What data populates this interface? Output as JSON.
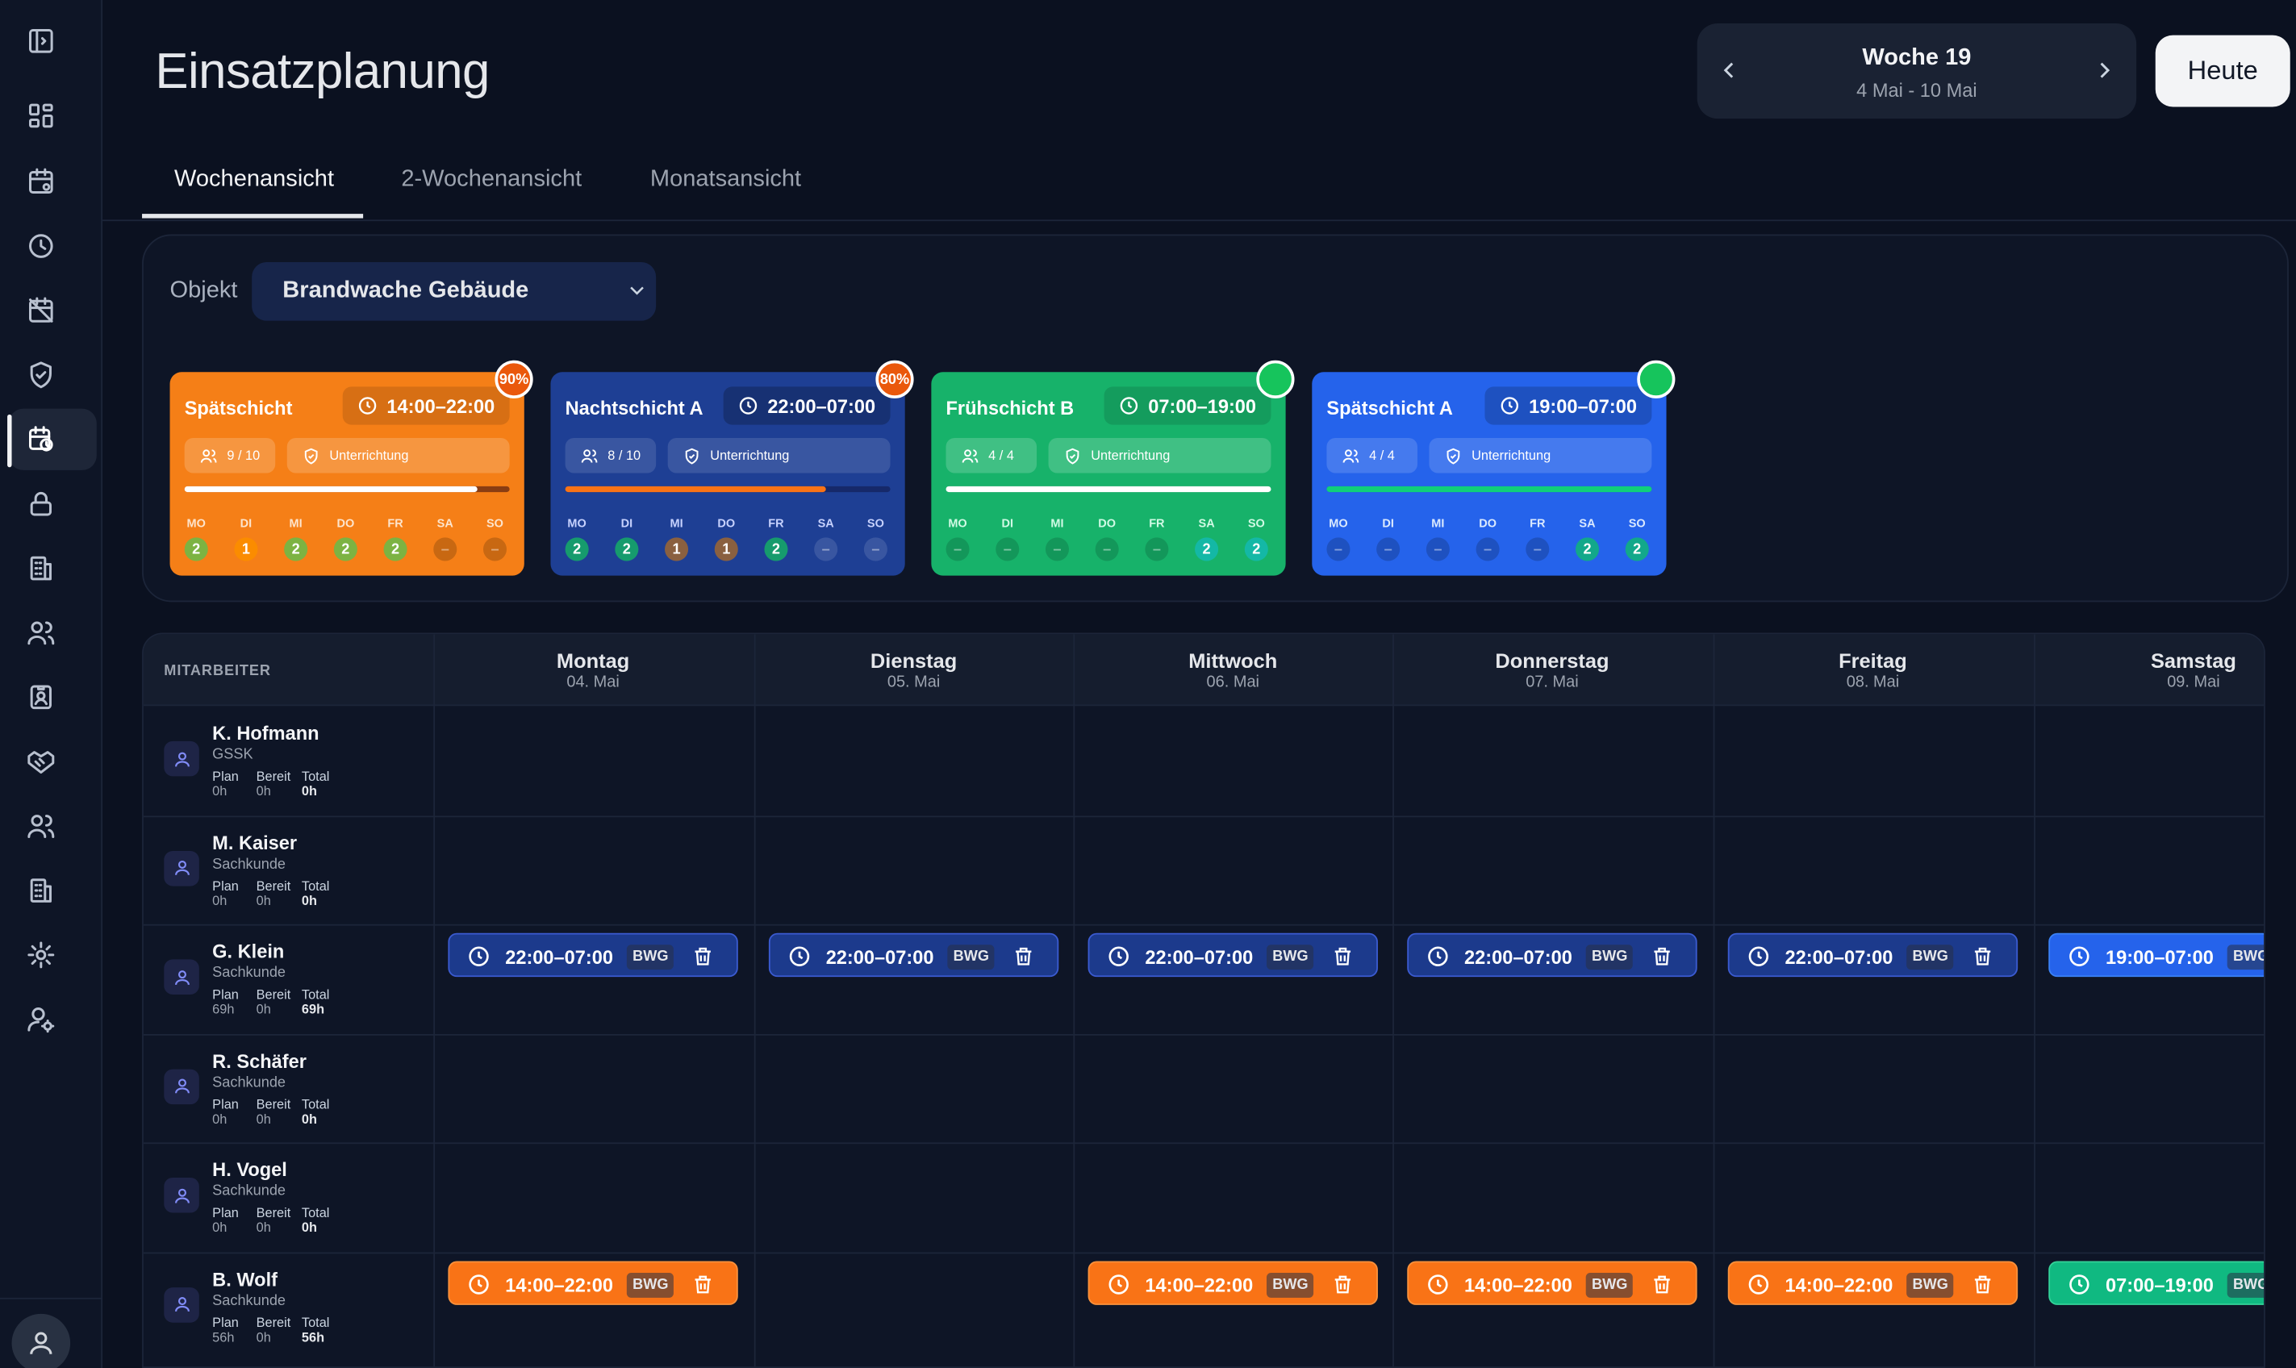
{
  "app": {
    "title": "Einsatzplanung"
  },
  "week": {
    "title": "Woche 19",
    "range": "4 Mai - 10 Mai",
    "today_label": "Heute"
  },
  "tabs": [
    {
      "label": "Wochenansicht"
    },
    {
      "label": "2-Wochenansicht"
    },
    {
      "label": "Monatsansicht"
    }
  ],
  "filter": {
    "label": "Objekt",
    "value": "Brandwache Gebäude"
  },
  "day_abbr": [
    "MO",
    "DI",
    "MI",
    "DO",
    "FR",
    "SA",
    "SO"
  ],
  "shifts": [
    {
      "name": "Spätschicht",
      "time": "14:00–22:00",
      "badge": "90%",
      "staff": "9 / 10",
      "briefing": "Unterrichtung",
      "fill": 0.9,
      "days": [
        "2",
        "1",
        "2",
        "2",
        "2",
        "–",
        "–"
      ],
      "bg": "#f57f17"
    },
    {
      "name": "Nachtschicht A",
      "time": "22:00–07:00",
      "badge": "80%",
      "staff": "8 / 10",
      "briefing": "Unterrichtung",
      "fill": 0.8,
      "days": [
        "2",
        "2",
        "1",
        "1",
        "2",
        "–",
        "–"
      ],
      "bg": "#1e3f94"
    },
    {
      "name": "Frühschicht B",
      "time": "07:00–19:00",
      "badge": "",
      "staff": "4 / 4",
      "briefing": "Unterrichtung",
      "fill": 1.0,
      "days": [
        "–",
        "–",
        "–",
        "–",
        "–",
        "2",
        "2"
      ],
      "bg": "#17b26a"
    },
    {
      "name": "Spätschicht A",
      "time": "19:00–07:00",
      "badge": "",
      "staff": "4 / 4",
      "briefing": "Unterrichtung",
      "fill": 1.0,
      "days": [
        "–",
        "–",
        "–",
        "–",
        "–",
        "2",
        "2"
      ],
      "bg": "#2563eb"
    }
  ],
  "grid": {
    "employee_header": "MITARBEITER",
    "days": [
      {
        "name": "Montag",
        "date": "04. Mai"
      },
      {
        "name": "Dienstag",
        "date": "05. Mai"
      },
      {
        "name": "Mittwoch",
        "date": "06. Mai"
      },
      {
        "name": "Donnerstag",
        "date": "07. Mai"
      },
      {
        "name": "Freitag",
        "date": "08. Mai"
      },
      {
        "name": "Samstag",
        "date": "09. Mai"
      }
    ],
    "stat_labels": {
      "plan": "Plan",
      "ready": "Bereit",
      "total": "Total"
    },
    "employees": [
      {
        "name": "K. Hofmann",
        "role": "GSSK",
        "plan": "0h",
        "ready": "0h",
        "total": "0h",
        "shifts": []
      },
      {
        "name": "M. Kaiser",
        "role": "Sachkunde",
        "plan": "0h",
        "ready": "0h",
        "total": "0h",
        "shifts": []
      },
      {
        "name": "G. Klein",
        "role": "Sachkunde",
        "plan": "69h",
        "ready": "0h",
        "total": "69h",
        "shifts": [
          {
            "day": 0,
            "time": "22:00–07:00",
            "tag": "BWG",
            "kind": "night"
          },
          {
            "day": 1,
            "time": "22:00–07:00",
            "tag": "BWG",
            "kind": "night"
          },
          {
            "day": 2,
            "time": "22:00–07:00",
            "tag": "BWG",
            "kind": "night"
          },
          {
            "day": 3,
            "time": "22:00–07:00",
            "tag": "BWG",
            "kind": "night"
          },
          {
            "day": 4,
            "time": "22:00–07:00",
            "tag": "BWG",
            "kind": "night"
          },
          {
            "day": 5,
            "time": "19:00–07:00",
            "tag": "BWG",
            "kind": "blue"
          }
        ]
      },
      {
        "name": "R. Schäfer",
        "role": "Sachkunde",
        "plan": "0h",
        "ready": "0h",
        "total": "0h",
        "shifts": []
      },
      {
        "name": "H. Vogel",
        "role": "Sachkunde",
        "plan": "0h",
        "ready": "0h",
        "total": "0h",
        "shifts": []
      },
      {
        "name": "B. Wolf",
        "role": "Sachkunde",
        "plan": "56h",
        "ready": "0h",
        "total": "56h",
        "shifts": [
          {
            "day": 0,
            "time": "14:00–22:00",
            "tag": "BWG",
            "kind": "orange"
          },
          {
            "day": 2,
            "time": "14:00–22:00",
            "tag": "BWG",
            "kind": "orange"
          },
          {
            "day": 3,
            "time": "14:00–22:00",
            "tag": "BWG",
            "kind": "orange"
          },
          {
            "day": 4,
            "time": "14:00–22:00",
            "tag": "BWG",
            "kind": "orange"
          },
          {
            "day": 5,
            "time": "07:00–19:00",
            "tag": "BWG",
            "kind": "green"
          }
        ]
      }
    ]
  },
  "sidebar": {
    "icons": [
      "panel-toggle-icon",
      "dashboard-grid-icon",
      "calendar-settings-icon",
      "clock-icon",
      "calendar-off-icon",
      "shield-check-icon",
      "calendar-clock-icon",
      "lock-icon",
      "building-icon",
      "users-icon",
      "id-card-icon",
      "handshake-icon",
      "team-icon",
      "office-building-icon",
      "gear-icon",
      "user-settings-icon"
    ]
  }
}
